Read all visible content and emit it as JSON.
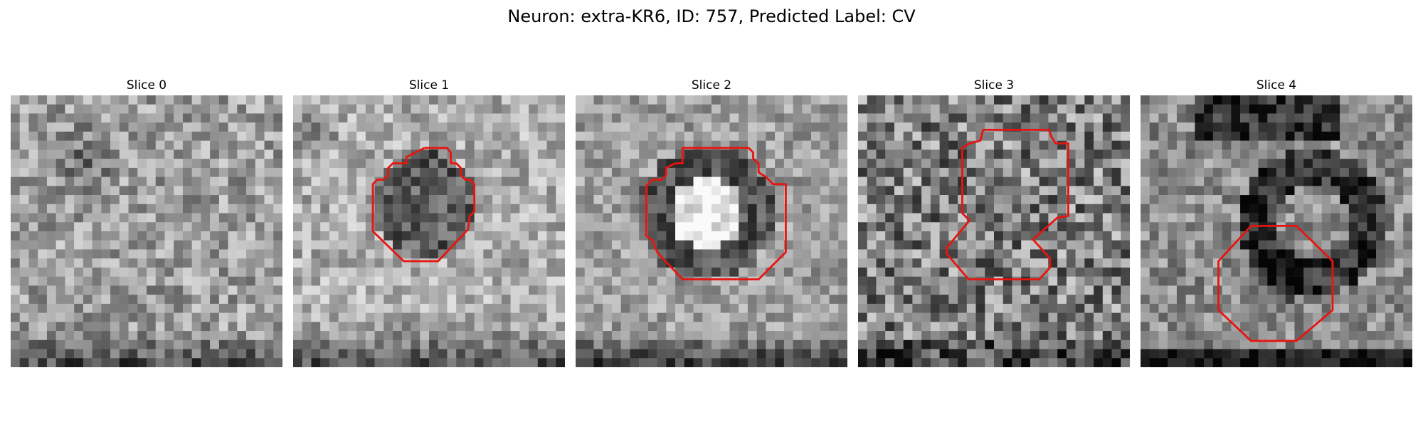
{
  "figure": {
    "title": "Neuron: extra-KR6, ID: 757, Predicted Label: CV"
  },
  "panels": [
    {
      "title": "Slice 0"
    },
    {
      "title": "Slice 1"
    },
    {
      "title": "Slice 2"
    },
    {
      "title": "Slice 3"
    },
    {
      "title": "Slice 4"
    }
  ],
  "colors": {
    "contour": "#e8140f",
    "background": "#ffffff"
  }
}
